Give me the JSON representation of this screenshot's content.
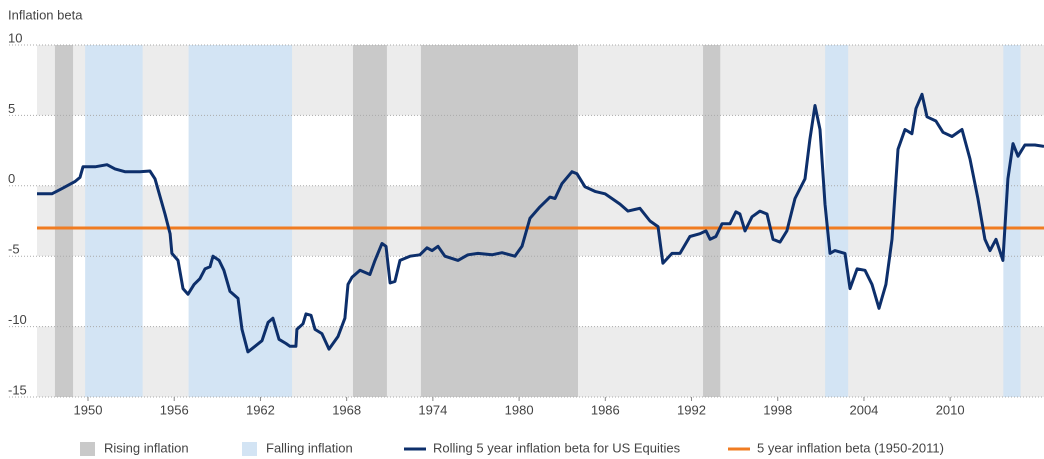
{
  "chart_data": {
    "type": "line",
    "y_label": "Inflation beta",
    "xlim": [
      1946.45,
      2016.53
    ],
    "xticks": [
      1950,
      1956,
      1962,
      1968,
      1974,
      1980,
      1986,
      1992,
      1998,
      2004,
      2010
    ],
    "ylim": [
      -15,
      10
    ],
    "yticks": [
      10,
      5,
      0,
      -5,
      -10,
      -15
    ],
    "grid": true,
    "bands": [
      {
        "name": "Rising inflation",
        "color": "#c9c9c9",
        "ranges": [
          [
            1947.7,
            1948.96
          ],
          [
            1968.44,
            1970.8
          ],
          [
            1973.17,
            1984.1
          ],
          [
            1992.8,
            1994.0
          ]
        ]
      },
      {
        "name": "Falling inflation",
        "color": "#d3e4f4",
        "ranges": [
          [
            1949.8,
            1953.8
          ],
          [
            1957.0,
            1964.2
          ],
          [
            2001.3,
            2002.9
          ],
          [
            2013.7,
            2014.9
          ]
        ]
      }
    ],
    "series": [
      {
        "name": "Rolling 5 year inflation beta for US Equities",
        "color": "#0d2f6b",
        "x": [
          1946.45,
          1947.49,
          1948.19,
          1949.09,
          1949.44,
          1949.65,
          1950.49,
          1951.32,
          1951.88,
          1952.57,
          1953.62,
          1954.31,
          1954.66,
          1955.36,
          1955.71,
          1955.84,
          1956.26,
          1956.61,
          1956.96,
          1957.38,
          1957.79,
          1958.14,
          1958.49,
          1958.7,
          1959.12,
          1959.46,
          1959.88,
          1960.44,
          1960.72,
          1961.13,
          1961.62,
          1962.11,
          1962.53,
          1962.87,
          1963.29,
          1963.78,
          1964.06,
          1964.47,
          1964.54,
          1964.96,
          1965.17,
          1965.52,
          1965.8,
          1966.28,
          1966.77,
          1967.4,
          1967.88,
          1968.09,
          1968.37,
          1968.93,
          1969.62,
          1969.97,
          1970.46,
          1970.74,
          1971.02,
          1971.36,
          1971.71,
          1972.41,
          1973.1,
          1973.59,
          1973.94,
          1974.36,
          1974.84,
          1975.75,
          1976.44,
          1977.14,
          1978.11,
          1978.81,
          1979.71,
          1980.2,
          1980.76,
          1981.45,
          1982.15,
          1982.5,
          1982.98,
          1983.68,
          1984.03,
          1984.59,
          1985.28,
          1985.98,
          1986.46,
          1987.02,
          1987.58,
          1988.41,
          1989.11,
          1989.67,
          1990.01,
          1990.64,
          1991.2,
          1991.89,
          1992.59,
          1993.01,
          1993.29,
          1993.7,
          1994.12,
          1994.68,
          1995.09,
          1995.37,
          1995.72,
          1996.21,
          1996.76,
          1997.25,
          1997.67,
          1998.16,
          1998.64,
          1999.2,
          1999.9,
          2000.24,
          2000.59,
          2000.94,
          2001.29,
          2001.64,
          2001.98,
          2002.68,
          2003.03,
          2003.52,
          2004.07,
          2004.56,
          2005.05,
          2005.53,
          2005.95,
          2006.37,
          2006.86,
          2007.34,
          2007.62,
          2008.04,
          2008.39,
          2009.01,
          2009.5,
          2010.13,
          2010.82,
          2011.38,
          2011.93,
          2012.42,
          2012.77,
          2013.19,
          2013.67,
          2014.02,
          2014.37,
          2014.72,
          2015.2,
          2015.9,
          2016.53
        ],
        "values": [
          -0.57,
          -0.57,
          -0.2,
          0.3,
          0.6,
          1.35,
          1.35,
          1.5,
          1.2,
          1.0,
          1.0,
          1.05,
          0.5,
          -2.0,
          -3.4,
          -4.8,
          -5.3,
          -7.3,
          -7.7,
          -7.0,
          -6.6,
          -5.9,
          -5.75,
          -5.0,
          -5.3,
          -6.0,
          -7.5,
          -8.0,
          -10.2,
          -11.8,
          -11.4,
          -11.0,
          -9.7,
          -9.4,
          -10.9,
          -11.2,
          -11.4,
          -11.4,
          -10.2,
          -9.8,
          -9.1,
          -9.2,
          -10.2,
          -10.5,
          -11.6,
          -10.7,
          -9.4,
          -7.0,
          -6.5,
          -6.0,
          -6.3,
          -5.3,
          -4.1,
          -4.3,
          -6.9,
          -6.8,
          -5.3,
          -5.0,
          -4.9,
          -4.4,
          -4.6,
          -4.3,
          -5.0,
          -5.3,
          -4.9,
          -4.8,
          -4.9,
          -4.75,
          -5.0,
          -4.3,
          -2.3,
          -1.5,
          -0.8,
          -0.9,
          0.15,
          1.0,
          0.85,
          -0.07,
          -0.4,
          -0.57,
          -0.9,
          -1.3,
          -1.8,
          -1.6,
          -2.5,
          -2.9,
          -5.5,
          -4.8,
          -4.8,
          -3.6,
          -3.4,
          -3.2,
          -3.8,
          -3.6,
          -2.7,
          -2.7,
          -1.85,
          -2.0,
          -3.2,
          -2.2,
          -1.8,
          -2.0,
          -3.8,
          -4.0,
          -3.2,
          -0.9,
          0.5,
          3.3,
          5.7,
          4.0,
          -1.3,
          -4.8,
          -4.6,
          -4.8,
          -7.3,
          -5.9,
          -6.0,
          -7.0,
          -8.7,
          -7.0,
          -3.8,
          2.6,
          4.0,
          3.7,
          5.5,
          6.5,
          4.9,
          4.6,
          3.8,
          3.5,
          4.0,
          1.9,
          -0.9,
          -3.8,
          -4.6,
          -3.8,
          -5.3,
          0.5,
          3.0,
          2.1,
          2.9,
          2.9,
          2.8
        ]
      }
    ],
    "reference_line": {
      "name": "5 year inflation beta (1950-2011)",
      "color": "#f07c22",
      "value": -3
    }
  }
}
